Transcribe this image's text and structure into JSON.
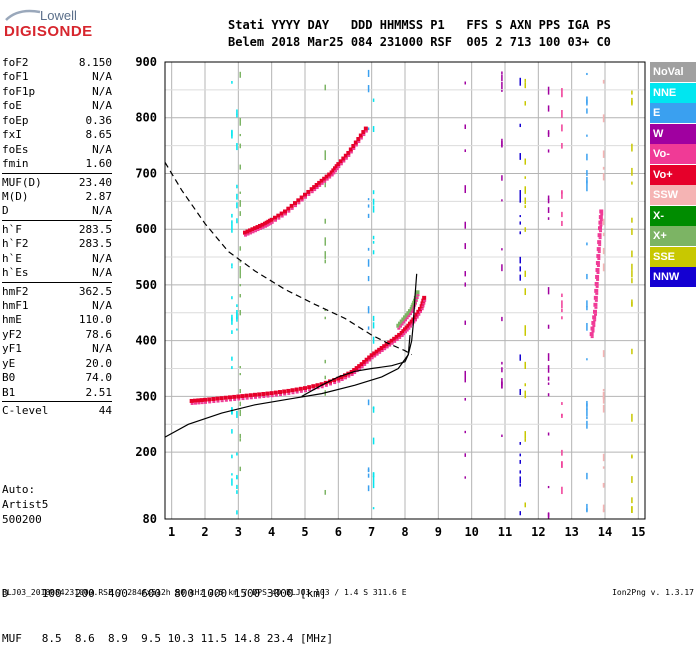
{
  "logo": {
    "line1": "Lowell",
    "line2": "DIGISONDE"
  },
  "header": {
    "row1": "Stati YYYY DAY   DDD HHMMSS P1   FFS S AXN PPS IGA PS",
    "row2": "Belem 2018 Mar25 084 231000 RSF  005 2 713 100 03+ C0"
  },
  "params": {
    "group1": [
      {
        "name": "foF2",
        "value": "8.150"
      },
      {
        "name": "foF1",
        "value": "N/A"
      },
      {
        "name": "foF1p",
        "value": "N/A"
      },
      {
        "name": "foE",
        "value": "N/A"
      },
      {
        "name": "foEp",
        "value": "0.36"
      },
      {
        "name": "fxI",
        "value": "8.65"
      },
      {
        "name": "foEs",
        "value": "N/A"
      },
      {
        "name": "fmin",
        "value": "1.60"
      }
    ],
    "group2": [
      {
        "name": "MUF(D)",
        "value": "23.40"
      },
      {
        "name": "M(D)",
        "value": "2.87"
      },
      {
        "name": "D",
        "value": "N/A"
      }
    ],
    "group3": [
      {
        "name": "h`F",
        "value": "283.5"
      },
      {
        "name": "h`F2",
        "value": "283.5"
      },
      {
        "name": "h`E",
        "value": "N/A"
      },
      {
        "name": "h`Es",
        "value": "N/A"
      }
    ],
    "group4": [
      {
        "name": "hmF2",
        "value": "362.5"
      },
      {
        "name": "hmF1",
        "value": "N/A"
      },
      {
        "name": "hmE",
        "value": "110.0"
      },
      {
        "name": "yF2",
        "value": "78.6"
      },
      {
        "name": "yF1",
        "value": "N/A"
      },
      {
        "name": "yE",
        "value": "20.0"
      },
      {
        "name": "B0",
        "value": "74.0"
      },
      {
        "name": "B1",
        "value": "2.51"
      }
    ],
    "group5": [
      {
        "name": "C-level",
        "value": "44"
      }
    ]
  },
  "auto": {
    "line1": "Auto:",
    "line2": "Artist5",
    "line3": "500200"
  },
  "muf_table": {
    "row1": "D     100  200  400  600  800 1000 1500 3000 [km]",
    "row2": "MUF   8.5  8.6  8.9  9.5 10.3 11.5 14.8 23.4 [MHz]"
  },
  "footer": {
    "left": "BLJ03_2018084231000.RSF / 284fx512h 50 kHz 2.5 km / DPS-4D BLJ03 103 / 1.4 S 311.6 E",
    "right": "Ion2Png v. 1.3.17"
  },
  "legend": [
    {
      "label": "NoVal",
      "color": "#a0a0a0"
    },
    {
      "label": "NNE",
      "color": "#00e6f0"
    },
    {
      "label": "E",
      "color": "#3aa0f0"
    },
    {
      "label": "W",
      "color": "#a000a0"
    },
    {
      "label": "Vo-",
      "color": "#f03a96"
    },
    {
      "label": "Vo+",
      "color": "#e6002a"
    },
    {
      "label": "SSW",
      "color": "#f5b4b4"
    },
    {
      "label": "X-",
      "color": "#008c00"
    },
    {
      "label": "X+",
      "color": "#7cb464"
    },
    {
      "label": "SSE",
      "color": "#c8c800"
    },
    {
      "label": "NNW",
      "color": "#1400d2"
    }
  ],
  "chart_data": {
    "type": "scatter",
    "xlim": [
      0.8,
      15.2
    ],
    "ylim": [
      80,
      900
    ],
    "x_ticks": [
      1,
      2,
      3,
      4,
      5,
      6,
      7,
      8,
      9,
      10,
      11,
      12,
      13,
      14,
      15
    ],
    "y_ticks": [
      80,
      200,
      300,
      400,
      500,
      600,
      700,
      800,
      900
    ],
    "grid": true,
    "legend_position": "right",
    "series": [
      {
        "name": "Vo+",
        "color": "#e6002a",
        "x": [
          1.6,
          2.0,
          2.5,
          3.0,
          3.5,
          4.0,
          4.5,
          5.0,
          5.5,
          6.0,
          6.4,
          6.7,
          7.0,
          7.3,
          7.6,
          7.9,
          8.1,
          8.3,
          8.5,
          8.6
        ],
        "y": [
          290,
          292,
          295,
          298,
          301,
          304,
          308,
          313,
          320,
          330,
          342,
          356,
          372,
          385,
          398,
          412,
          425,
          440,
          460,
          480
        ]
      },
      {
        "name": "Vo+",
        "color": "#e6002a",
        "x": [
          3.2,
          3.5,
          3.8,
          4.0,
          4.4,
          4.8,
          5.2,
          5.5,
          5.8,
          6.0,
          6.3,
          6.6,
          6.9
        ],
        "y": [
          592,
          600,
          608,
          615,
          630,
          650,
          670,
          685,
          700,
          715,
          735,
          760,
          785
        ]
      },
      {
        "name": "Vo-",
        "color": "#f03a96",
        "x": [
          13.6,
          13.7,
          13.75,
          13.8,
          13.85,
          13.9
        ],
        "y": [
          410,
          450,
          500,
          550,
          600,
          640
        ]
      },
      {
        "name": "X+",
        "color": "#7cb464",
        "x": [
          7.8,
          8.0,
          8.2,
          8.3,
          8.4
        ],
        "y": [
          425,
          440,
          455,
          470,
          490
        ]
      }
    ]
  }
}
